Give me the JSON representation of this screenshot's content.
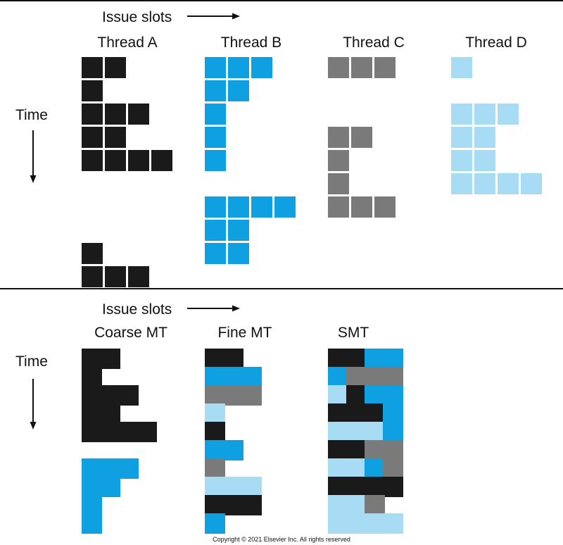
{
  "colors": {
    "A": "#1a1a1a",
    "B": "#0ea0e0",
    "C": "#7a7a7a",
    "D": "#a8dcf5",
    "line": "#111111",
    "background": "#ffffff"
  },
  "top": {
    "issue_slots_label": "Issue slots",
    "time_label": "Time",
    "threads": [
      {
        "key": "A",
        "name": "Thread A",
        "rows": [
          "1100",
          "1000",
          "1110",
          "1100",
          "1111",
          "0000",
          "0000",
          "0000",
          "1000",
          "1110"
        ]
      },
      {
        "key": "B",
        "name": "Thread B",
        "rows": [
          "1110",
          "1100",
          "1000",
          "1000",
          "1000",
          "0000",
          "1111",
          "1100",
          "1100"
        ]
      },
      {
        "key": "C",
        "name": "Thread C",
        "rows": [
          "1110",
          "0000",
          "0000",
          "1100",
          "1000",
          "1000",
          "1110"
        ]
      },
      {
        "key": "D",
        "name": "Thread D",
        "rows": [
          "1000",
          "0000",
          "1110",
          "1100",
          "1100",
          "1111"
        ]
      }
    ]
  },
  "bottom": {
    "issue_slots_label": "Issue slots",
    "time_label": "Time",
    "schemes": [
      {
        "name": "Coarse MT",
        "rows": [
          "AA..",
          "A...",
          "AAA.",
          "AA..",
          "AAAA",
          "....",
          "BBB.",
          "BB..",
          "B...",
          "B..."
        ]
      },
      {
        "name": "Fine MT",
        "rows": [
          "AA..",
          "BBB.",
          "CCC.",
          "D...",
          "A...",
          "BB..",
          "C...",
          "DDD.",
          "AAA.",
          "B..."
        ]
      },
      {
        "name": "SMT",
        "rows": [
          "AABB",
          "BCCC",
          "DABB",
          "AAAB",
          "DDDB",
          "AACC",
          "DDBC",
          "AAAA",
          "DDC.",
          "DDDD"
        ]
      }
    ]
  },
  "copyright": "Copyright © 2021 Elsevier Inc. All rights reserved"
}
